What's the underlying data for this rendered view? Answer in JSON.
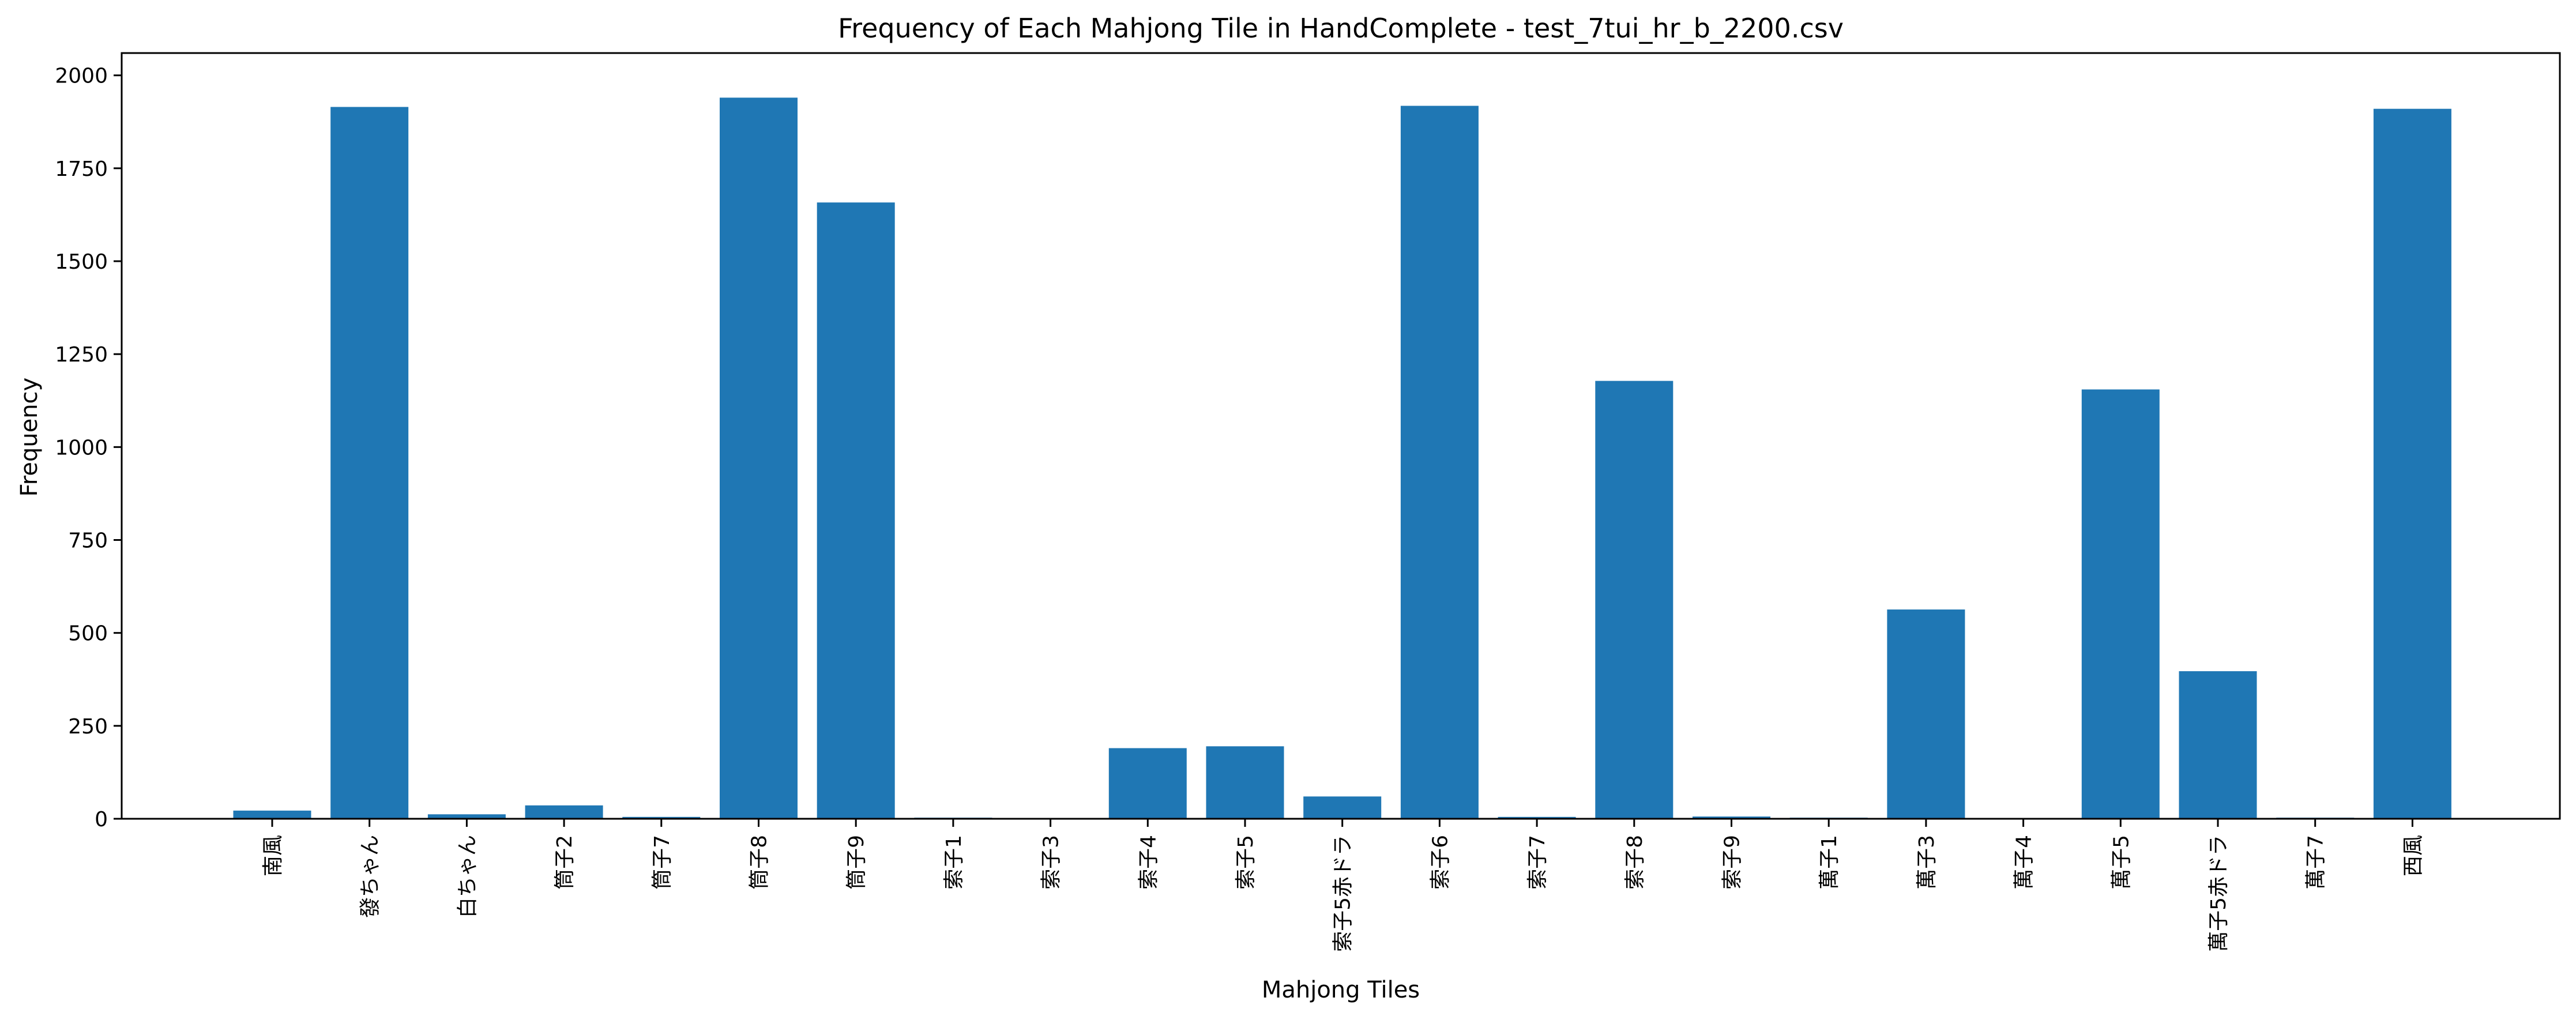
{
  "chart_data": {
    "type": "bar",
    "title": "Frequency of Each Mahjong Tile in HandComplete - test_7tui_hr_b_2200.csv",
    "xlabel": "Mahjong Tiles",
    "ylabel": "Frequency",
    "ylim": [
      0,
      2060
    ],
    "yticks": [
      0,
      250,
      500,
      750,
      1000,
      1250,
      1500,
      1750,
      2000
    ],
    "grid": false,
    "bar_color": "#1f77b4",
    "categories": [
      "南風",
      "發ちゃん",
      "白ちゃん",
      "筒子2",
      "筒子7",
      "筒子8",
      "筒子9",
      "索子1",
      "索子3",
      "索子4",
      "索子5",
      "索子5赤ドラ",
      "索子6",
      "索子7",
      "索子8",
      "索子9",
      "萬子1",
      "萬子3",
      "萬子4",
      "萬子5",
      "萬子5赤ドラ",
      "萬子7",
      "西風"
    ],
    "values": [
      22,
      1915,
      12,
      36,
      5,
      1940,
      1658,
      3,
      1,
      190,
      195,
      60,
      1918,
      5,
      1178,
      6,
      3,
      563,
      1,
      1155,
      397,
      3,
      1910
    ]
  }
}
